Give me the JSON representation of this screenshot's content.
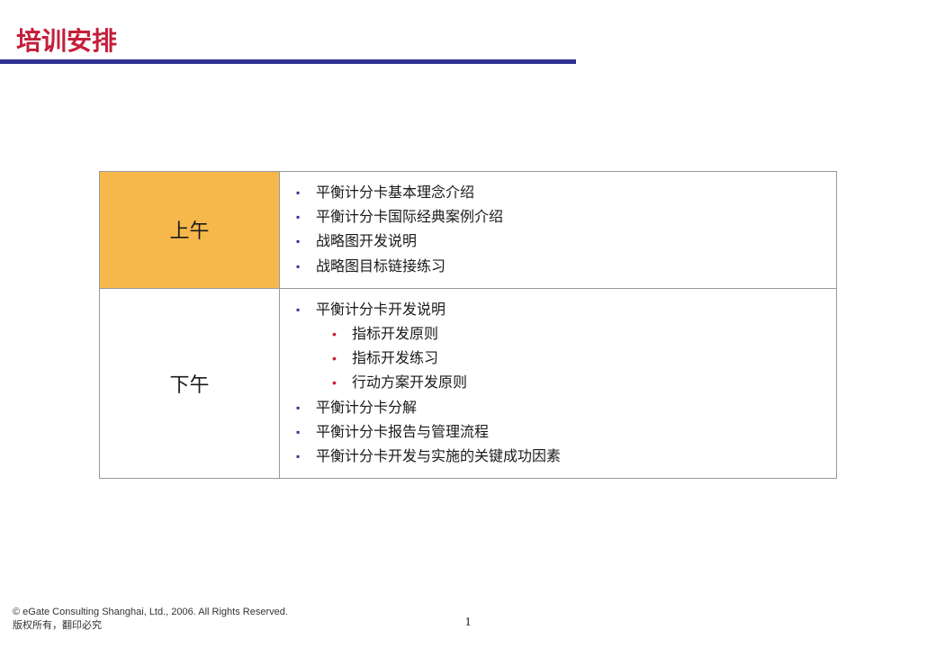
{
  "title": "培训安排",
  "colors": {
    "title": "#c41e3a",
    "underline": "#2e3192",
    "morning_bg": "#f7b84b",
    "bullet_square": "#2e3192",
    "bullet_dot": "#c41e3a",
    "border": "#999999",
    "text": "#1a1a1a",
    "background": "#ffffff"
  },
  "schedule": {
    "morning": {
      "label": "上午",
      "items": [
        "平衡计分卡基本理念介绍",
        "平衡计分卡国际经典案例介绍",
        "战略图开发说明",
        "战略图目标链接练习"
      ]
    },
    "afternoon": {
      "label": "下午",
      "items": [
        {
          "text": "平衡计分卡开发说明",
          "level": 0
        },
        {
          "text": "指标开发原则",
          "level": 1
        },
        {
          "text": "指标开发练习",
          "level": 1
        },
        {
          "text": "行动方案开发原则",
          "level": 1
        },
        {
          "text": "平衡计分卡分解",
          "level": 0
        },
        {
          "text": "平衡计分卡报告与管理流程",
          "level": 0
        },
        {
          "text": "平衡计分卡开发与实施的关键成功因素",
          "level": 0
        }
      ]
    }
  },
  "footer": {
    "line1": "© eGate Consulting Shanghai, Ltd., 2006.  All Rights Reserved.",
    "line2": "版权所有，翻印必究"
  },
  "page_number": "1"
}
